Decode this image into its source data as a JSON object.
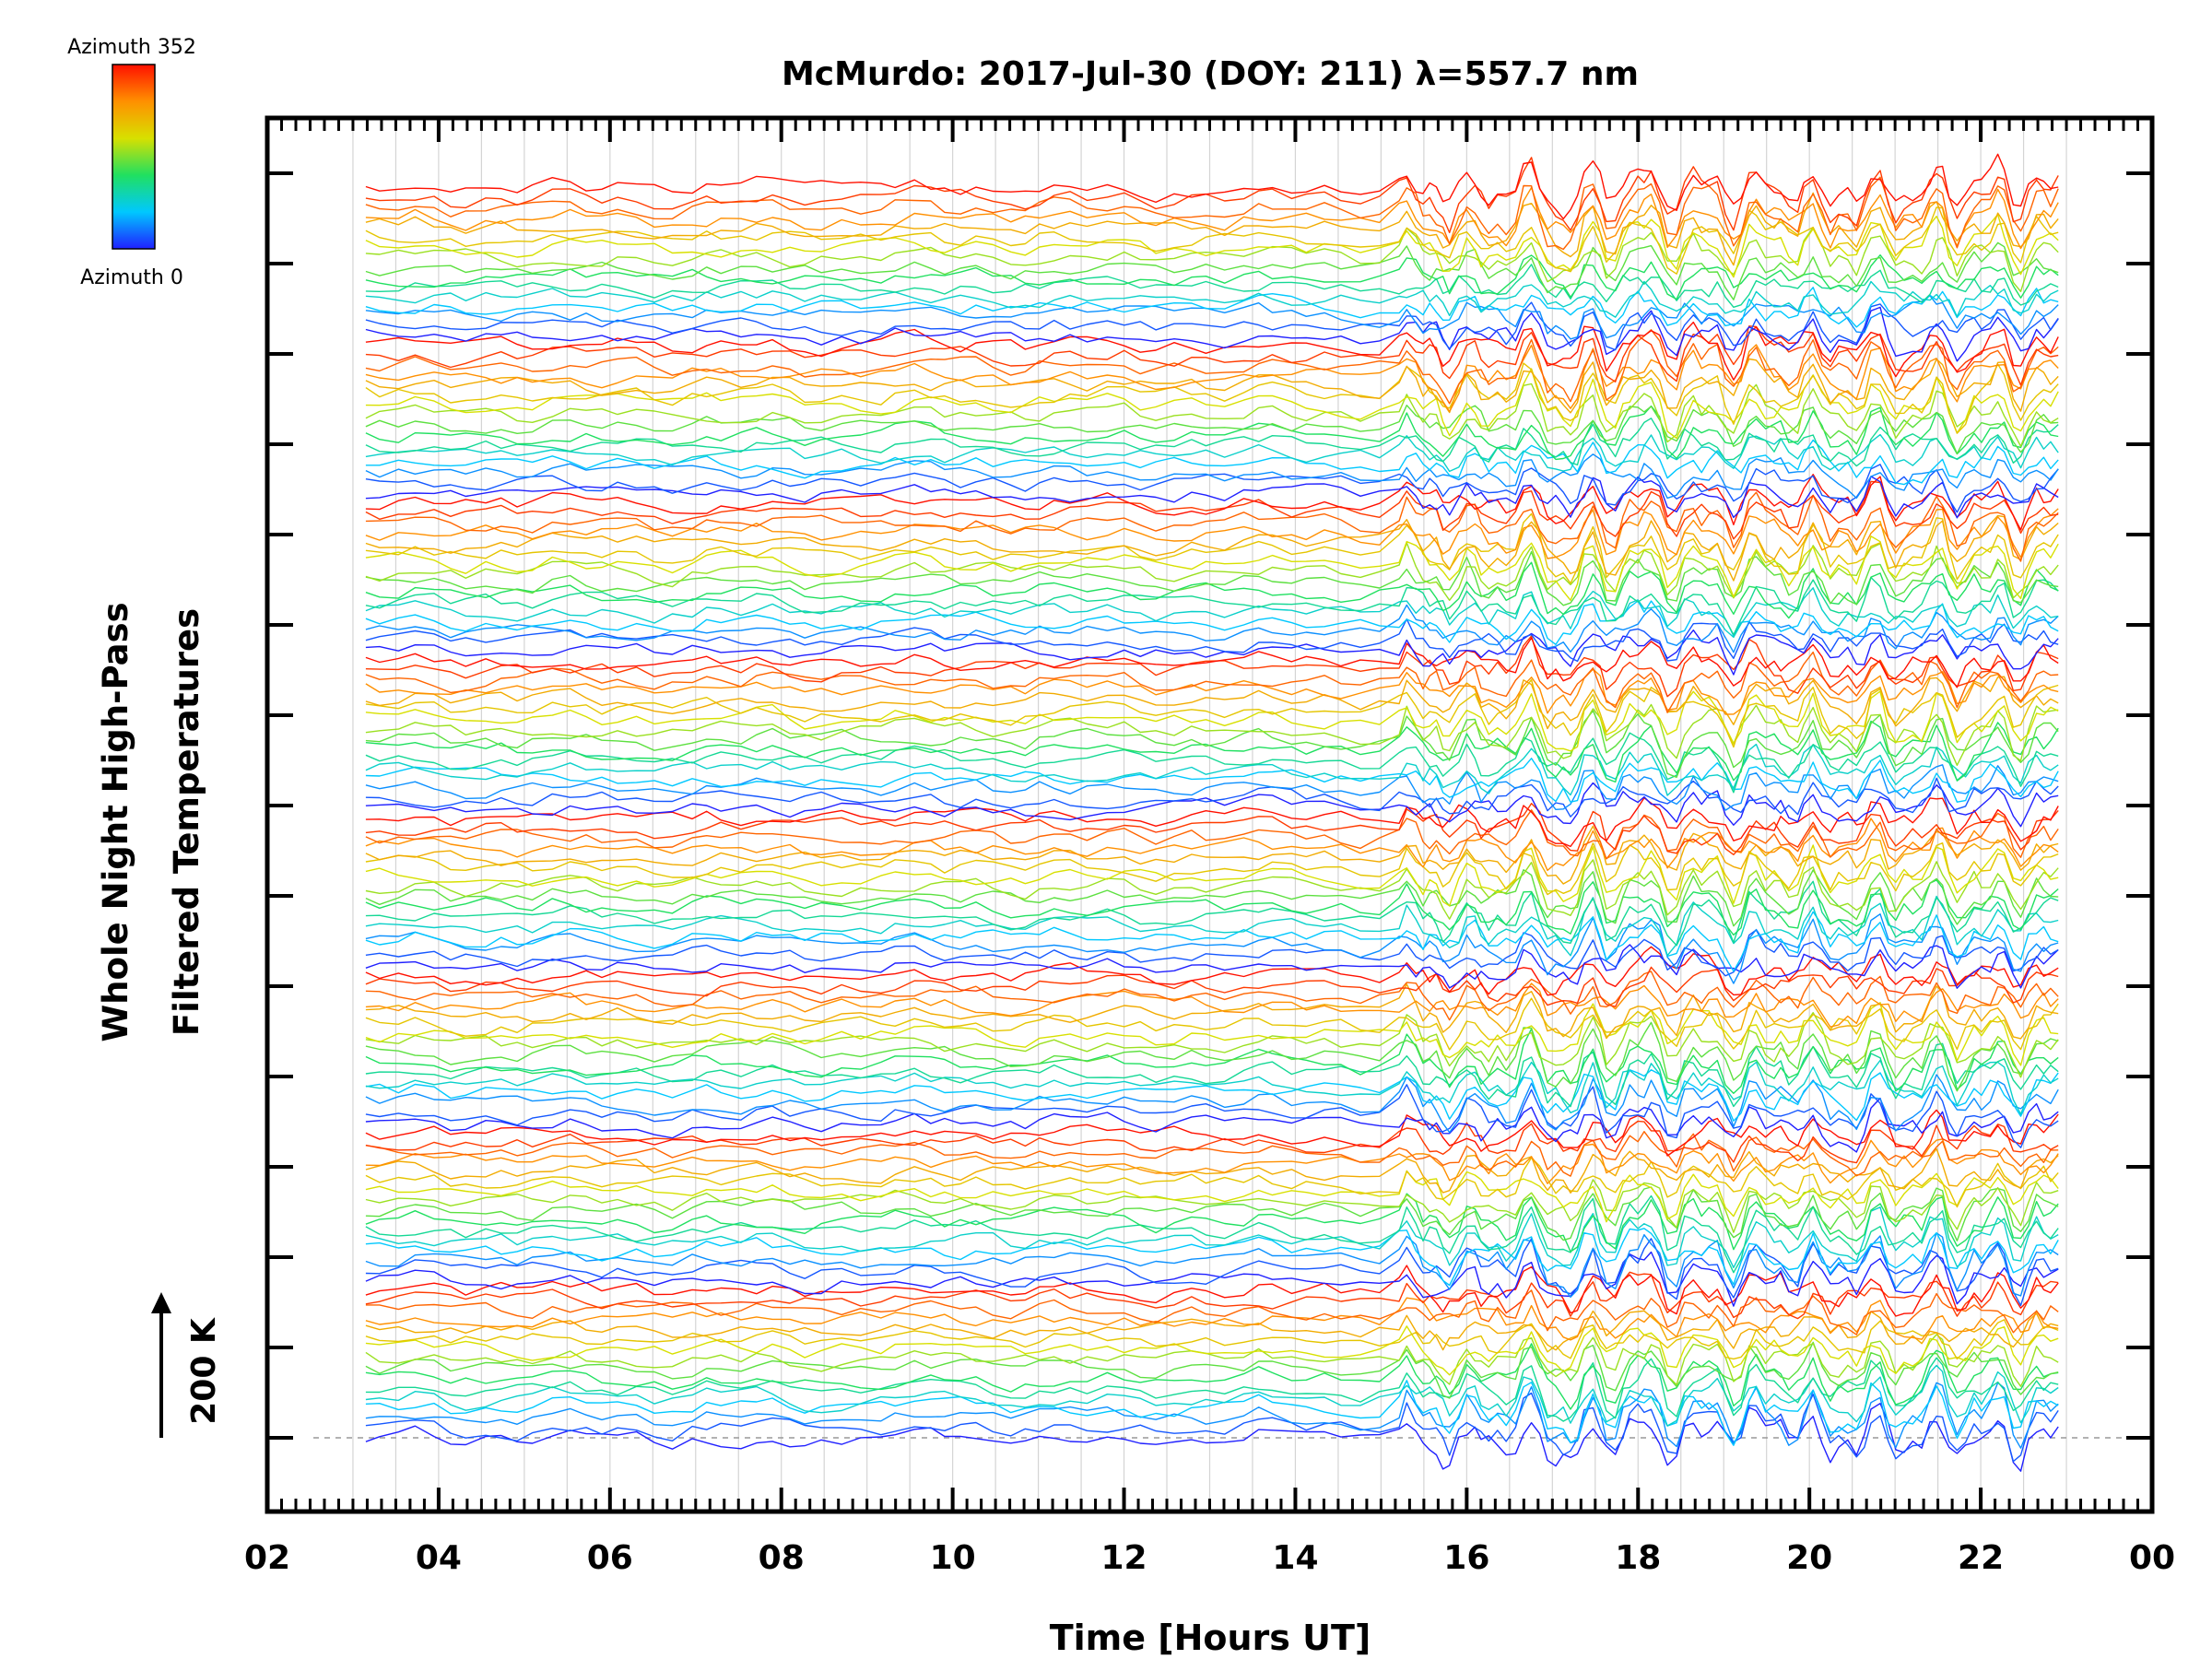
{
  "chart_data": {
    "type": "line",
    "title": "McMurdo: 2017-Jul-30 (DOY: 211) λ=557.7 nm",
    "xlabel": "Time [Hours UT]",
    "ylabel_line1": "Whole Night High-Pass",
    "ylabel_line2": "Filtered Temperatures",
    "scale_label": "200 K",
    "x_ticks": [
      "02",
      "04",
      "06",
      "08",
      "10",
      "12",
      "14",
      "16",
      "18",
      "20",
      "22",
      "00"
    ],
    "x_range_hours": [
      2,
      24
    ],
    "data_start_hour": 3.15,
    "data_end_hour": 22.98,
    "cadence_change_hour": 15.1,
    "grid": true,
    "colorbar": {
      "label_top": "Azimuth 352",
      "label_bottom": "Azimuth 0",
      "azimuth_min": 0,
      "azimuth_max": 352,
      "colors": [
        "#2020ff",
        "#00c8ff",
        "#20e060",
        "#d8e000",
        "#ff9000",
        "#ff1000"
      ]
    },
    "series_count": 128,
    "series_note": "stacked, vertically offset high-pass filtered temperature traces colored by azimuth (0 blue to 352 red, repeating groups)"
  }
}
